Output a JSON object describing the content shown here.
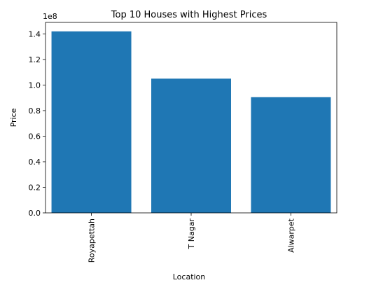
{
  "chart_data": {
    "type": "bar",
    "title": "Top 10 Houses with Highest Prices",
    "xlabel": "Location",
    "ylabel": "Price",
    "offset_label": "1e8",
    "categories": [
      "Royapettah",
      "T Nagar",
      "Alwarpet"
    ],
    "values": [
      142000000,
      105000000,
      90500000
    ],
    "ylim": [
      0,
      149000000
    ],
    "yticks": [
      0,
      20000000,
      40000000,
      60000000,
      80000000,
      100000000,
      120000000,
      140000000
    ],
    "ytick_labels": [
      "0.0",
      "0.2",
      "0.4",
      "0.6",
      "0.8",
      "1.0",
      "1.2",
      "1.4"
    ],
    "bar_color": "#1f77b4",
    "grid": false,
    "legend": "none"
  }
}
